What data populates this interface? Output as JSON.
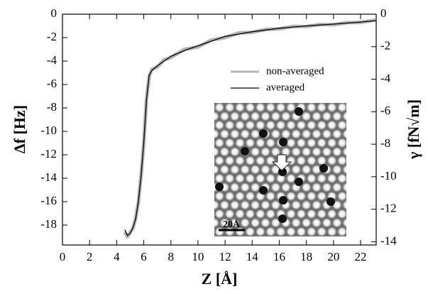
{
  "chart_data": {
    "type": "line",
    "x_label": "Z [Å]",
    "y_label": "Δf [Hz]",
    "y2_label": "γ [fN√m]",
    "x": [
      4.6,
      4.8,
      5.0,
      5.2,
      5.4,
      5.6,
      5.8,
      6.0,
      6.2,
      6.4,
      6.6,
      7,
      7.5,
      8,
      9,
      10,
      11,
      12,
      13,
      14,
      15,
      16,
      17,
      18,
      19,
      20,
      21,
      22,
      23.1
    ],
    "series": [
      {
        "name": "non-averaged",
        "color": "#b4b4b4",
        "values": [
          -18.6,
          -19.0,
          -18.6,
          -18.3,
          -17.4,
          -16.1,
          -13.8,
          -11.0,
          -7.2,
          -5.3,
          -4.7,
          -4.5,
          -3.9,
          -3.7,
          -3.0,
          -2.8,
          -2.2,
          -2.0,
          -1.6,
          -1.55,
          -1.3,
          -1.25,
          -1.05,
          -1.05,
          -0.88,
          -0.9,
          -0.72,
          -0.7,
          -0.5
        ]
      },
      {
        "name": "averaged",
        "color": "#000000",
        "values": [
          -18.4,
          -18.9,
          -18.7,
          -18.2,
          -17.5,
          -16.0,
          -13.9,
          -10.9,
          -7.3,
          -5.2,
          -4.8,
          -4.4,
          -4.0,
          -3.6,
          -3.1,
          -2.7,
          -2.3,
          -1.9,
          -1.7,
          -1.5,
          -1.35,
          -1.2,
          -1.1,
          -1.0,
          -0.92,
          -0.85,
          -0.76,
          -0.67,
          -0.55
        ]
      }
    ],
    "xlim": [
      0,
      23.15
    ],
    "xticks": [
      0,
      2,
      4,
      6,
      8,
      10,
      12,
      14,
      16,
      18,
      20,
      22
    ],
    "ylim": [
      -19.7,
      0
    ],
    "yticks": [
      0,
      -2,
      -4,
      -6,
      -8,
      -10,
      -12,
      -14,
      -16,
      -18
    ],
    "y2lim": [
      -14.2,
      0
    ],
    "y2ticks": [
      0,
      -2,
      -4,
      -6,
      -8,
      -10,
      -12,
      -14
    ],
    "legend": "right",
    "inset_label": "20Å"
  }
}
